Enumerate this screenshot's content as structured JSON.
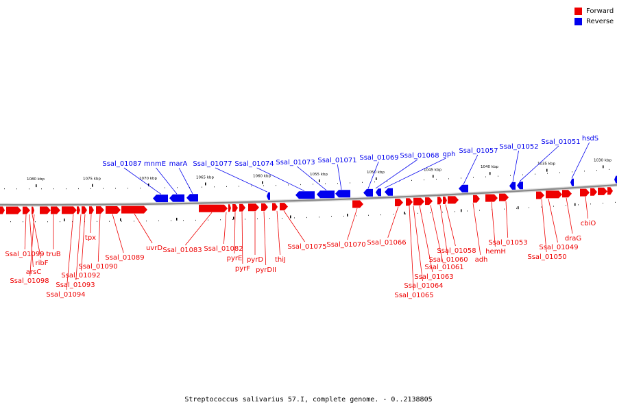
{
  "legend": [
    {
      "label": "Forward",
      "color": "#ee0000"
    },
    {
      "label": "Reverse",
      "color": "#0000ee"
    }
  ],
  "caption": "Streptococcus salivarius 57.I, complete genome. - 0..2138805",
  "tick_labels": [
    "1080 kbp",
    "1075 kbp",
    "1070 kbp",
    "1065 kbp",
    "1060 kbp",
    "1055 kbp",
    "1050 kbp",
    "1045 kbp",
    "1040 kbp",
    "1035 kbp",
    "1030 kbp"
  ],
  "reverse_genes": [
    "Ssal_01087",
    "mnmE",
    "marA",
    "Ssal_01077",
    "Ssal_01074",
    "Ssal_01073",
    "Ssal_01071",
    "Ssal_01069",
    "Ssal_01068",
    "gph",
    "Ssal_01057",
    "Ssal_01052",
    "Ssal_01051",
    "hsdS"
  ],
  "forward_genes": [
    "Ssal_01099",
    "ribF",
    "arsC",
    "Ssal_01098",
    "truB",
    "tpx",
    "Ssal_01090",
    "Ssal_01092",
    "Ssal_01093",
    "Ssal_01094",
    "Ssal_01089",
    "uvrD",
    "Ssal_01083",
    "Ssal_01082",
    "pyrE",
    "pyrF",
    "pyrD",
    "pyrDII",
    "thiJ",
    "Ssal_01075",
    "Ssal_01070",
    "Ssal_01066",
    "Ssal_01065",
    "Ssal_01064",
    "Ssal_01063",
    "Ssal_01061",
    "Ssal_01060",
    "Ssal_01058",
    "adh",
    "hemH",
    "Ssal_01053",
    "Ssal_01050",
    "Ssal_01049",
    "draG",
    "cbiO"
  ],
  "colors": {
    "forward": "#ee0000",
    "reverse": "#0000ee",
    "backbone": "#888888"
  }
}
